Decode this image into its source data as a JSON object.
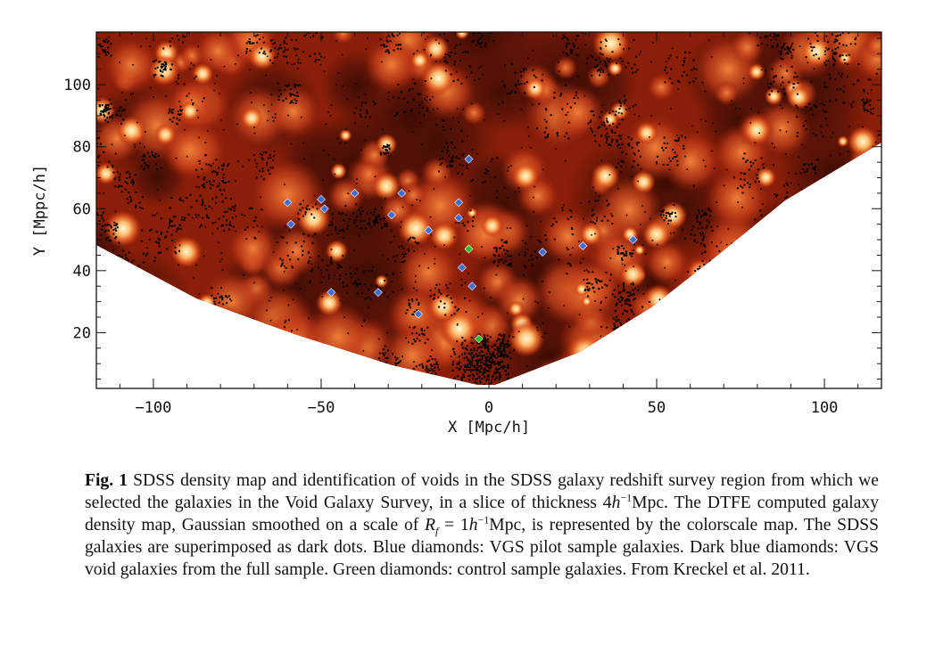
{
  "chart_data": {
    "type": "scatter",
    "x": {
      "label": "X [Mpc/h]",
      "range": [
        -117,
        117
      ],
      "ticks": [
        -100,
        -50,
        0,
        50,
        100
      ],
      "tick_labels": [
        "−100",
        "−50",
        "0",
        "50",
        "100"
      ]
    },
    "y": {
      "label": "Y [Mppc/h]",
      "range": [
        2,
        117
      ],
      "ticks": [
        20,
        40,
        60,
        80,
        100
      ],
      "tick_labels": [
        "20",
        "40",
        "60",
        "80",
        "100"
      ]
    },
    "colors": {
      "background": "#7a1a08",
      "dense": "#ffe2a8",
      "galaxy_dot": "#000000",
      "pilot_diamond": "#6fb6ff",
      "void_diamond": "#3a6ed8",
      "control_diamond": "#22c422"
    },
    "series": [
      {
        "marker": "diamond",
        "color": "#3a6ed8",
        "points": [
          [
            -60,
            62
          ],
          [
            -59,
            55
          ],
          [
            -50,
            63
          ],
          [
            -49,
            60
          ],
          [
            -40,
            65
          ],
          [
            -29,
            58
          ],
          [
            -26,
            65
          ],
          [
            -18,
            53
          ],
          [
            -9,
            62
          ],
          [
            -9,
            57
          ],
          [
            -6,
            76
          ],
          [
            -8,
            41
          ],
          [
            -5,
            35
          ],
          [
            -47,
            33
          ],
          [
            -33,
            33
          ],
          [
            -21,
            26
          ],
          [
            16,
            46
          ],
          [
            28,
            48
          ],
          [
            43,
            50
          ]
        ]
      },
      {
        "marker": "diamond",
        "color": "#22c422",
        "points": [
          [
            -6,
            47
          ],
          [
            -3,
            18
          ]
        ]
      }
    ]
  },
  "caption": {
    "label": "Fig. 1",
    "p1": "SDSS density map and identification of voids in the SDSS galaxy redshift survey region from which we selected the galaxies in the Void Galaxy Survey, in a slice of thickness 4",
    "h": "h",
    "exp1": "−1",
    "p2": "Mpc. The DTFE computed galaxy density map, Gaussian smoothed on a scale of ",
    "rf": "R",
    "rf_sub": "f",
    "p3": " = 1",
    "h2": "h",
    "exp2": "−1",
    "p4": "Mpc, is represented by the colorscale map. The SDSS galaxies are superimposed as dark dots. Blue diamonds: VGS pilot sample galaxies. Dark blue diamonds: VGS void galaxies from the full sample. Green diamonds: control sample galaxies. From Kreckel et al. 2011."
  }
}
